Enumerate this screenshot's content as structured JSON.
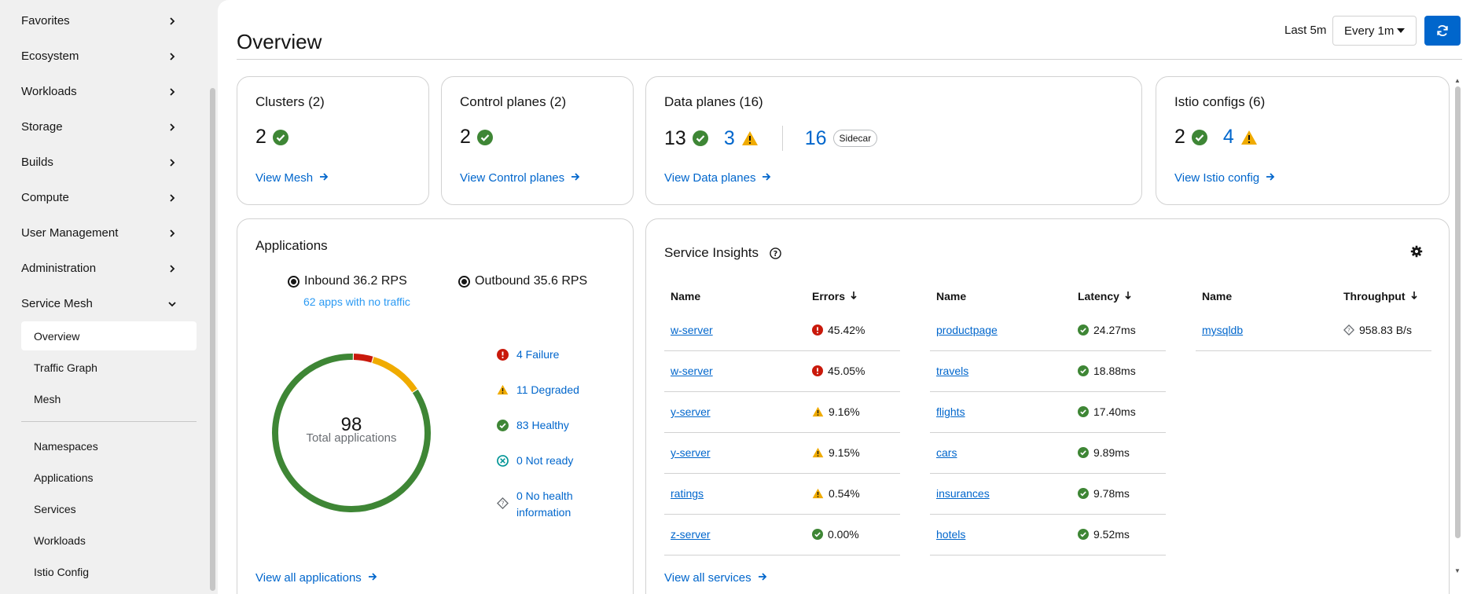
{
  "sidebar": {
    "groups": [
      {
        "label": "Favorites"
      },
      {
        "label": "Ecosystem"
      },
      {
        "label": "Workloads"
      },
      {
        "label": "Storage"
      },
      {
        "label": "Builds"
      },
      {
        "label": "Compute"
      },
      {
        "label": "User Management"
      },
      {
        "label": "Administration"
      },
      {
        "label": "Service Mesh"
      }
    ],
    "service_mesh_items": [
      {
        "label": "Overview",
        "active": true
      },
      {
        "label": "Traffic Graph"
      },
      {
        "label": "Mesh"
      }
    ],
    "service_mesh_items2": [
      {
        "label": "Namespaces"
      },
      {
        "label": "Applications"
      },
      {
        "label": "Services"
      },
      {
        "label": "Workloads"
      },
      {
        "label": "Istio Config"
      }
    ]
  },
  "header": {
    "title": "Overview",
    "time_range": "Last 5m",
    "refresh_interval": "Every 1m"
  },
  "cards": {
    "clusters": {
      "title": "Clusters (2)",
      "healthy": "2",
      "link": "View Mesh"
    },
    "control_planes": {
      "title": "Control planes (2)",
      "healthy": "2",
      "link": "View Control planes"
    },
    "data_planes": {
      "title": "Data planes (16)",
      "healthy": "13",
      "warning": "3",
      "sidecar_count": "16",
      "sidecar_label": "Sidecar",
      "link": "View Data planes"
    },
    "istio_configs": {
      "title": "Istio configs (6)",
      "healthy": "2",
      "warning": "4",
      "link": "View Istio config"
    }
  },
  "applications": {
    "title": "Applications",
    "inbound": "Inbound 36.2 RPS",
    "outbound": "Outbound 35.6 RPS",
    "no_traffic": "62 apps with no traffic",
    "total": "98",
    "total_label": "Total applications",
    "legend": {
      "failure": "4 Failure",
      "degraded": "11 Degraded",
      "healthy": "83 Healthy",
      "not_ready": "0 Not ready",
      "no_health_1": "0 No health",
      "no_health_2": "information"
    },
    "donut": {
      "failure": 4,
      "degraded": 11,
      "healthy": 83,
      "not_ready": 0,
      "no_health": 0
    },
    "view_link": "View all applications"
  },
  "service_insights": {
    "title": "Service Insights",
    "errors_table": {
      "col_name": "Name",
      "col_value": "Errors",
      "rows": [
        {
          "name": "w-server",
          "value": "45.42%",
          "status": "danger"
        },
        {
          "name": "w-server",
          "value": "45.05%",
          "status": "danger"
        },
        {
          "name": "y-server",
          "value": "9.16%",
          "status": "warning"
        },
        {
          "name": "y-server",
          "value": "9.15%",
          "status": "warning"
        },
        {
          "name": "ratings",
          "value": "0.54%",
          "status": "warning"
        },
        {
          "name": "z-server",
          "value": "0.00%",
          "status": "success"
        }
      ]
    },
    "latency_table": {
      "col_name": "Name",
      "col_value": "Latency",
      "rows": [
        {
          "name": "productpage",
          "value": "24.27ms",
          "status": "success"
        },
        {
          "name": "travels",
          "value": "18.88ms",
          "status": "success"
        },
        {
          "name": "flights",
          "value": "17.40ms",
          "status": "success"
        },
        {
          "name": "cars",
          "value": "9.89ms",
          "status": "success"
        },
        {
          "name": "insurances",
          "value": "9.78ms",
          "status": "success"
        },
        {
          "name": "hotels",
          "value": "9.52ms",
          "status": "success"
        }
      ]
    },
    "throughput_table": {
      "col_name": "Name",
      "col_value": "Throughput",
      "rows": [
        {
          "name": "mysqldb",
          "value": "958.83 B/s",
          "status": "unknown"
        }
      ]
    },
    "view_link": "View all services"
  },
  "colors": {
    "success": "#3e8635",
    "warning": "#f0ab00",
    "danger": "#c9190b",
    "link": "#0066cc",
    "not_ready": "#009596"
  }
}
